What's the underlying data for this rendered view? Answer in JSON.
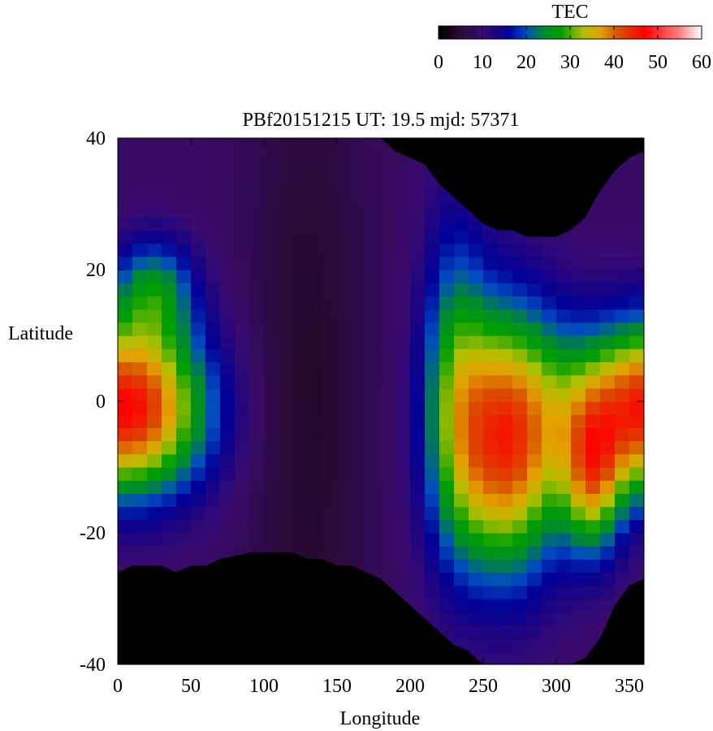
{
  "chart_data": {
    "type": "heatmap",
    "title": "PBf20151215  UT: 19.5  mjd: 57371",
    "xlabel": "Longitude",
    "ylabel": "Latitude",
    "xlim": [
      0,
      360
    ],
    "ylim": [
      -40,
      40
    ],
    "xticks": [
      0,
      50,
      100,
      150,
      200,
      250,
      300,
      350
    ],
    "yticks": [
      -40,
      -20,
      0,
      20,
      40
    ],
    "colorbar": {
      "label": "TEC",
      "range": [
        0,
        60
      ],
      "ticks": [
        0,
        10,
        20,
        30,
        40,
        50,
        60
      ],
      "colormap": [
        {
          "v": 0,
          "color": "#000000"
        },
        {
          "v": 5,
          "color": "#2a0a36"
        },
        {
          "v": 10,
          "color": "#3a0a6e"
        },
        {
          "v": 16,
          "color": "#000099"
        },
        {
          "v": 20,
          "color": "#004cc0"
        },
        {
          "v": 24,
          "color": "#008a2e"
        },
        {
          "v": 28,
          "color": "#00a000"
        },
        {
          "v": 33,
          "color": "#b0c000"
        },
        {
          "v": 37,
          "color": "#e2a000"
        },
        {
          "v": 41,
          "color": "#d85000"
        },
        {
          "v": 47,
          "color": "#ff0000"
        },
        {
          "v": 55,
          "color": "#ff8080"
        },
        {
          "v": 60,
          "color": "#ffffff"
        }
      ]
    },
    "grid": {
      "lon_step": 10,
      "lat_step": 2
    },
    "night_boundary_south": [
      [
        0,
        -26
      ],
      [
        10,
        -25
      ],
      [
        20,
        -25
      ],
      [
        30,
        -25
      ],
      [
        40,
        -26
      ],
      [
        50,
        -25
      ],
      [
        60,
        -25
      ],
      [
        70,
        -24
      ],
      [
        80,
        -23.5
      ],
      [
        90,
        -23
      ],
      [
        100,
        -23
      ],
      [
        110,
        -23
      ],
      [
        120,
        -23
      ],
      [
        130,
        -24
      ],
      [
        140,
        -24
      ],
      [
        150,
        -25
      ],
      [
        160,
        -25
      ],
      [
        170,
        -26
      ],
      [
        180,
        -27
      ],
      [
        190,
        -29
      ],
      [
        200,
        -31
      ],
      [
        210,
        -33
      ],
      [
        220,
        -35
      ],
      [
        230,
        -37
      ],
      [
        240,
        -38
      ],
      [
        250,
        -40
      ],
      [
        260,
        -40
      ],
      [
        270,
        -40
      ],
      [
        280,
        -40
      ],
      [
        290,
        -40
      ],
      [
        300,
        -40
      ],
      [
        310,
        -40
      ],
      [
        320,
        -39
      ],
      [
        330,
        -36
      ],
      [
        340,
        -31
      ],
      [
        350,
        -28
      ],
      [
        360,
        -27
      ]
    ],
    "night_boundary_north": [
      [
        0,
        40
      ],
      [
        180,
        40
      ],
      [
        190,
        38
      ],
      [
        200,
        37
      ],
      [
        210,
        36
      ],
      [
        220,
        33
      ],
      [
        230,
        31
      ],
      [
        240,
        29
      ],
      [
        250,
        27
      ],
      [
        260,
        26
      ],
      [
        270,
        26
      ],
      [
        280,
        25
      ],
      [
        290,
        25
      ],
      [
        300,
        25
      ],
      [
        310,
        26
      ],
      [
        320,
        28
      ],
      [
        330,
        32
      ],
      [
        340,
        35
      ],
      [
        350,
        37
      ],
      [
        360,
        38
      ]
    ]
  }
}
